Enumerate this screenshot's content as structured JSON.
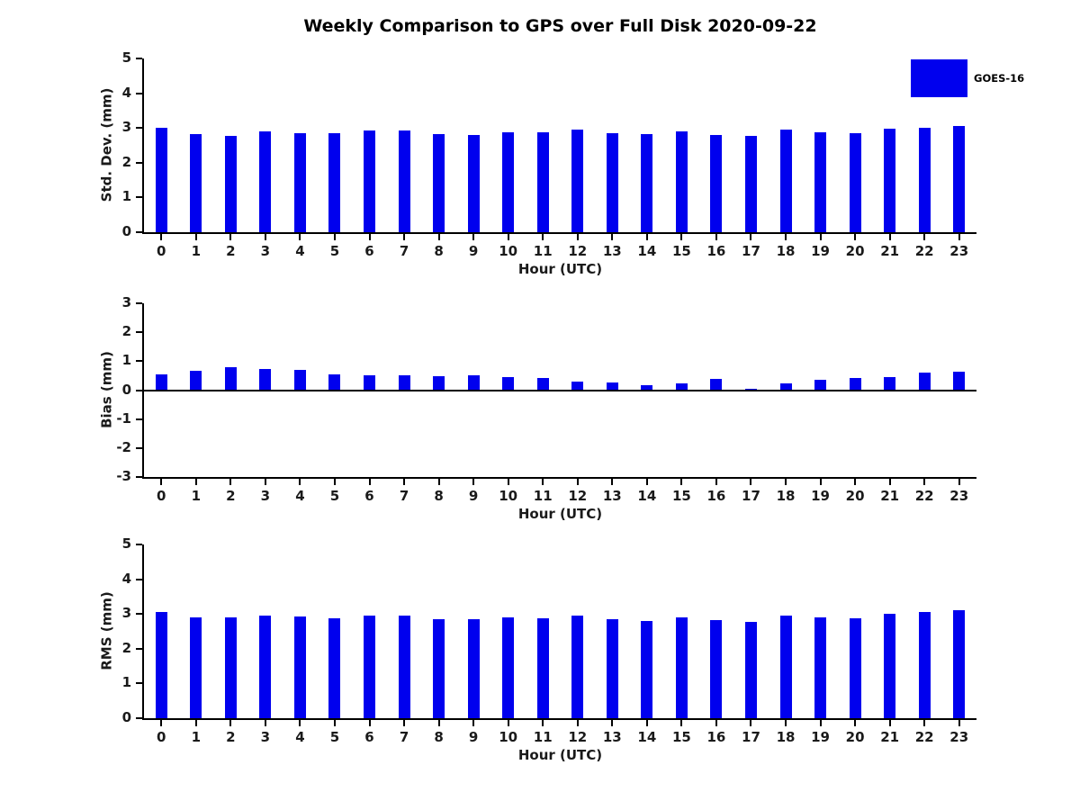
{
  "title": "Weekly Comparison to GPS over Full Disk 2020-09-22",
  "legend": {
    "label": "GOES-16",
    "color": "#0000ee"
  },
  "colors": {
    "bar": "#0000ee",
    "axis": "#000000",
    "tick_text": "#1a1a1a"
  },
  "chart_data": [
    {
      "type": "bar",
      "title": "Weekly Comparison to GPS over Full Disk 2020-09-22",
      "xlabel": "Hour (UTC)",
      "ylabel": "Std. Dev. (mm)",
      "ylim": [
        0,
        5
      ],
      "yticks": [
        0,
        1,
        2,
        3,
        4,
        5
      ],
      "grid": false,
      "legend": [
        "GOES-16"
      ],
      "legend_position": "top-right",
      "bar_color": "#0000ee",
      "categories": [
        "0",
        "1",
        "2",
        "3",
        "4",
        "5",
        "6",
        "7",
        "8",
        "9",
        "10",
        "11",
        "12",
        "13",
        "14",
        "15",
        "16",
        "17",
        "18",
        "19",
        "20",
        "21",
        "22",
        "23"
      ],
      "values": [
        3.0,
        2.82,
        2.78,
        2.9,
        2.85,
        2.85,
        2.92,
        2.92,
        2.82,
        2.8,
        2.87,
        2.87,
        2.95,
        2.85,
        2.82,
        2.9,
        2.8,
        2.77,
        2.95,
        2.88,
        2.85,
        2.98,
        3.0,
        3.05
      ]
    },
    {
      "type": "bar",
      "title": "",
      "xlabel": "Hour (UTC)",
      "ylabel": "Bias (mm)",
      "ylim": [
        -3,
        3
      ],
      "yticks": [
        -3,
        -2,
        -1,
        0,
        1,
        2,
        3
      ],
      "grid": false,
      "bar_color": "#0000ee",
      "categories": [
        "0",
        "1",
        "2",
        "3",
        "4",
        "5",
        "6",
        "7",
        "8",
        "9",
        "10",
        "11",
        "12",
        "13",
        "14",
        "15",
        "16",
        "17",
        "18",
        "19",
        "20",
        "21",
        "22",
        "23"
      ],
      "values": [
        0.55,
        0.68,
        0.8,
        0.72,
        0.7,
        0.53,
        0.5,
        0.5,
        0.47,
        0.5,
        0.45,
        0.43,
        0.28,
        0.27,
        0.18,
        0.22,
        0.38,
        0.05,
        0.22,
        0.35,
        0.42,
        0.45,
        0.6,
        0.65
      ]
    },
    {
      "type": "bar",
      "title": "",
      "xlabel": "Hour (UTC)",
      "ylabel": "RMS (mm)",
      "ylim": [
        0,
        5
      ],
      "yticks": [
        0,
        1,
        2,
        3,
        4,
        5
      ],
      "grid": false,
      "bar_color": "#0000ee",
      "categories": [
        "0",
        "1",
        "2",
        "3",
        "4",
        "5",
        "6",
        "7",
        "8",
        "9",
        "10",
        "11",
        "12",
        "13",
        "14",
        "15",
        "16",
        "17",
        "18",
        "19",
        "20",
        "21",
        "22",
        "23"
      ],
      "values": [
        3.05,
        2.9,
        2.9,
        2.95,
        2.92,
        2.87,
        2.95,
        2.95,
        2.85,
        2.85,
        2.9,
        2.87,
        2.95,
        2.85,
        2.8,
        2.9,
        2.82,
        2.78,
        2.95,
        2.9,
        2.88,
        3.0,
        3.05,
        3.1
      ]
    }
  ]
}
